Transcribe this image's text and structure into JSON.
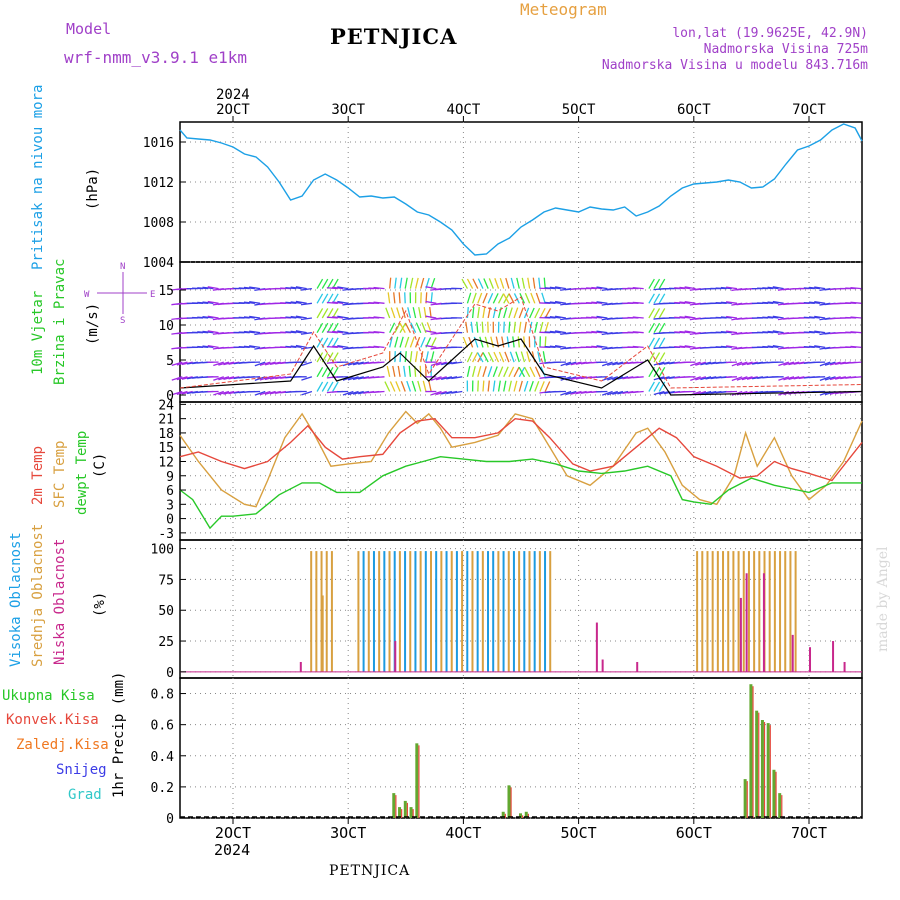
{
  "header": {
    "model_label": "Model",
    "model_name": "wrf-nmm_v3.9.1  e1km",
    "station": "PETNJICA",
    "meteogram": "Meteogram",
    "lonlat": "lon,lat (19.9625E, 42.9N)",
    "altitude": "Nadmorska Visina 725m",
    "model_altitude": "Nadmorska Visina u modelu 843.716m"
  },
  "footer": {
    "station": "PETNJICA",
    "watermark": "made by Angel"
  },
  "axis": {
    "year": "2024",
    "days": [
      "2OCT",
      "3OCT",
      "4OCT",
      "5OCT",
      "6OCT",
      "7OCT"
    ]
  },
  "panels": {
    "pressure": {
      "label": "Pritisak na nivou mora",
      "unit": "(hPa)",
      "ticks": [
        "1004",
        "1008",
        "1012",
        "1016"
      ]
    },
    "wind": {
      "label1": "10m Vjetar",
      "label2": "Brzina i Pravac",
      "unit": "(m/s)",
      "ticks": [
        "0",
        "5",
        "10",
        "15"
      ],
      "compass": "N",
      "compass_w": "W",
      "compass_e": "E",
      "compass_s": "S"
    },
    "temp": {
      "label1": "2m Temp",
      "label2": "SFC Temp",
      "label3": "dewpt Temp",
      "unit": "(C)",
      "ticks": [
        "-3",
        "0",
        "3",
        "6",
        "9",
        "12",
        "15",
        "18",
        "21",
        "24"
      ]
    },
    "cloud": {
      "label1": "Visoka Oblacnost",
      "label2": "Srednja Oblacnost",
      "label3": "Niska Oblacnost",
      "unit": "(%)",
      "ticks": [
        "0",
        "25",
        "50",
        "75",
        "100"
      ]
    },
    "precip": {
      "label": "1hr Precip (mm)",
      "ticks": [
        "0",
        "0.2",
        "0.4",
        "0.6",
        "0.8"
      ],
      "legend": [
        "Ukupna Kisa",
        "Konvek.Kisa",
        "Zaledj.Kisa",
        "Snijeg",
        "Grad"
      ]
    }
  },
  "colors": {
    "pressure": "#1ca0e6",
    "t2m": "#e6483c",
    "tsfc": "#d8a040",
    "dewpt": "#28c828",
    "high_cloud": "#1c9ae0",
    "mid_cloud": "#d8a040",
    "low_cloud": "#c8288c",
    "total_precip": "#62a830",
    "conv_precip": "#e6483c",
    "legend_total": "#28c828",
    "legend_conv": "#e6483c",
    "legend_frz": "#f07820",
    "legend_snow": "#3c3ce6",
    "legend_hail": "#30c8c8",
    "wind_speed": "#000000",
    "wind_gust": "#e6483c"
  },
  "chart_data": {
    "type": "line",
    "x_start": "2024-10-01 12:00",
    "x_end": "2024-10-07 12:00",
    "series": [
      {
        "name": "Pritisak na nivou mora",
        "unit": "hPa",
        "ylim": [
          1004,
          1018
        ],
        "x": [
          1.54,
          1.6,
          1.7,
          1.8,
          1.9,
          2.0,
          2.1,
          2.2,
          2.3,
          2.4,
          2.5,
          2.6,
          2.7,
          2.8,
          2.9,
          3.0,
          3.1,
          3.2,
          3.3,
          3.4,
          3.5,
          3.6,
          3.7,
          3.8,
          3.9,
          4.0,
          4.1,
          4.2,
          4.3,
          4.4,
          4.5,
          4.6,
          4.7,
          4.8,
          4.9,
          5.0,
          5.1,
          5.2,
          5.3,
          5.4,
          5.5,
          5.6,
          5.7,
          5.8,
          5.9,
          6.0,
          6.1,
          6.2,
          6.3,
          6.4,
          6.5,
          6.6,
          6.7,
          6.8,
          6.9,
          7.0,
          7.1,
          7.2,
          7.3,
          7.4,
          7.46
        ],
        "y": [
          1017.2,
          1016.4,
          1016.3,
          1016.2,
          1015.9,
          1015.5,
          1014.8,
          1014.5,
          1013.5,
          1012.0,
          1010.2,
          1010.6,
          1012.2,
          1012.8,
          1012.2,
          1011.4,
          1010.5,
          1010.6,
          1010.4,
          1010.5,
          1009.8,
          1009.0,
          1008.7,
          1008.0,
          1007.2,
          1005.8,
          1004.7,
          1004.8,
          1005.8,
          1006.4,
          1007.5,
          1008.2,
          1009.0,
          1009.4,
          1009.2,
          1009.0,
          1009.5,
          1009.3,
          1009.2,
          1009.5,
          1008.6,
          1009.0,
          1009.6,
          1010.6,
          1011.4,
          1011.8,
          1011.9,
          1012.0,
          1012.2,
          1012.0,
          1011.4,
          1011.5,
          1012.3,
          1013.8,
          1015.2,
          1015.6,
          1016.2,
          1017.2,
          1017.8,
          1017.4,
          1016.1
        ]
      },
      {
        "name": "2m Temp",
        "unit": "C",
        "ylim": [
          -3,
          24
        ],
        "x": [
          1.54,
          1.7,
          1.9,
          2.1,
          2.3,
          2.5,
          2.65,
          2.8,
          2.95,
          3.1,
          3.3,
          3.45,
          3.6,
          3.75,
          3.9,
          4.1,
          4.3,
          4.45,
          4.6,
          4.75,
          4.95,
          5.1,
          5.3,
          5.5,
          5.7,
          5.85,
          6.0,
          6.2,
          6.4,
          6.55,
          6.7,
          6.85,
          7.0,
          7.2,
          7.46
        ],
        "y": [
          13,
          14,
          12,
          10.5,
          12,
          16,
          19.5,
          15,
          12.5,
          13,
          13.5,
          18,
          20.5,
          21,
          17,
          17,
          18,
          21,
          20.5,
          17,
          11.5,
          10,
          11,
          15,
          19,
          17,
          13,
          11,
          8.5,
          9,
          12,
          10.5,
          9.5,
          8,
          16
        ]
      },
      {
        "name": "SFC Temp",
        "unit": "C",
        "ylim": [
          -3,
          24
        ],
        "x": [
          1.54,
          1.7,
          1.9,
          2.1,
          2.2,
          2.3,
          2.45,
          2.6,
          2.7,
          2.85,
          3.0,
          3.2,
          3.35,
          3.5,
          3.6,
          3.7,
          3.8,
          3.9,
          4.1,
          4.3,
          4.45,
          4.6,
          4.75,
          4.9,
          5.1,
          5.3,
          5.5,
          5.6,
          5.75,
          5.9,
          6.05,
          6.2,
          6.35,
          6.45,
          6.55,
          6.7,
          6.85,
          7.0,
          7.15,
          7.3,
          7.46
        ],
        "y": [
          17.5,
          12,
          6,
          3,
          2.5,
          8,
          17,
          22,
          18,
          11,
          11.5,
          12,
          18,
          22.5,
          20,
          22,
          19,
          15,
          16,
          17.5,
          22,
          21,
          15,
          9,
          7,
          11,
          18,
          19,
          14,
          7,
          4,
          3,
          9,
          18,
          11,
          17,
          9,
          4,
          7,
          12,
          20.5
        ]
      },
      {
        "name": "dewpt Temp",
        "unit": "C",
        "ylim": [
          -3,
          24
        ],
        "x": [
          1.54,
          1.65,
          1.8,
          1.9,
          2.0,
          2.2,
          2.4,
          2.6,
          2.75,
          2.9,
          3.1,
          3.3,
          3.5,
          3.65,
          3.8,
          4.0,
          4.2,
          4.4,
          4.6,
          4.8,
          5.0,
          5.2,
          5.4,
          5.6,
          5.8,
          5.9,
          6.0,
          6.15,
          6.3,
          6.5,
          6.7,
          6.9,
          7.0,
          7.2,
          7.46
        ],
        "y": [
          6,
          4,
          -2,
          0.5,
          0.5,
          1,
          5,
          7.5,
          7.5,
          5.5,
          5.5,
          9,
          11,
          12,
          13,
          12.5,
          12,
          12,
          12.5,
          11.5,
          10,
          9.5,
          10,
          11,
          9,
          4,
          3.5,
          3,
          6,
          8.5,
          7,
          6,
          5.5,
          7.5,
          7.5
        ]
      },
      {
        "name": "Ukupna Kisa",
        "unit": "mm",
        "ylim": [
          0,
          0.9
        ],
        "x": [
          3.4,
          3.45,
          3.5,
          3.55,
          3.6,
          4.35,
          4.4,
          4.5,
          4.55,
          6.45,
          6.5,
          6.55,
          6.6,
          6.65,
          6.7,
          6.75
        ],
        "y": [
          0.16,
          0.07,
          0.11,
          0.07,
          0.48,
          0.04,
          0.21,
          0.03,
          0.04,
          0.25,
          0.86,
          0.69,
          0.63,
          0.61,
          0.31,
          0.16
        ]
      }
    ]
  }
}
